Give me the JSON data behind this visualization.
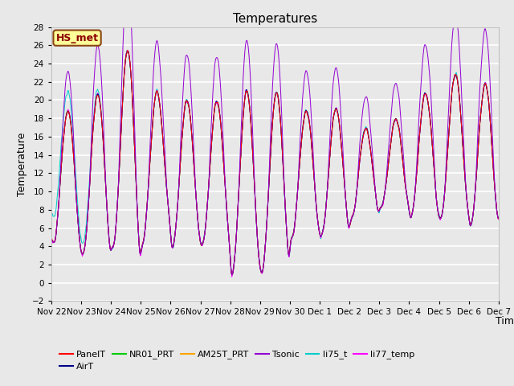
{
  "title": "Temperatures",
  "xlabel": "Time",
  "ylabel": "Temperature",
  "ylim": [
    -2,
    28
  ],
  "yticks": [
    -2,
    0,
    2,
    4,
    6,
    8,
    10,
    12,
    14,
    16,
    18,
    20,
    22,
    24,
    26,
    28
  ],
  "annotation_text": "HS_met",
  "annotation_box_color": "#FFFF99",
  "annotation_box_edge": "#8B4513",
  "annotation_text_color": "#8B0000",
  "series_colors": {
    "PanelT": "#FF0000",
    "AirT": "#00008B",
    "NR01_PRT": "#00CC00",
    "AM25T_PRT": "#FFA500",
    "Tsonic": "#9400D3",
    "li75_t": "#00CCCC",
    "li77_temp": "#FF00FF"
  },
  "plot_bg_color": "#E8E8E8",
  "grid_color": "#FFFFFF",
  "n_points": 4320,
  "tick_labels": [
    "Nov 22",
    "Nov 23",
    "Nov 24",
    "Nov 25",
    "Nov 26",
    "Nov 27",
    "Nov 28",
    "Nov 29",
    "Nov 30",
    "Dec 1",
    "Dec 2",
    "Dec 3",
    "Dec 4",
    "Dec 5",
    "Dec 6",
    "Dec 7"
  ]
}
